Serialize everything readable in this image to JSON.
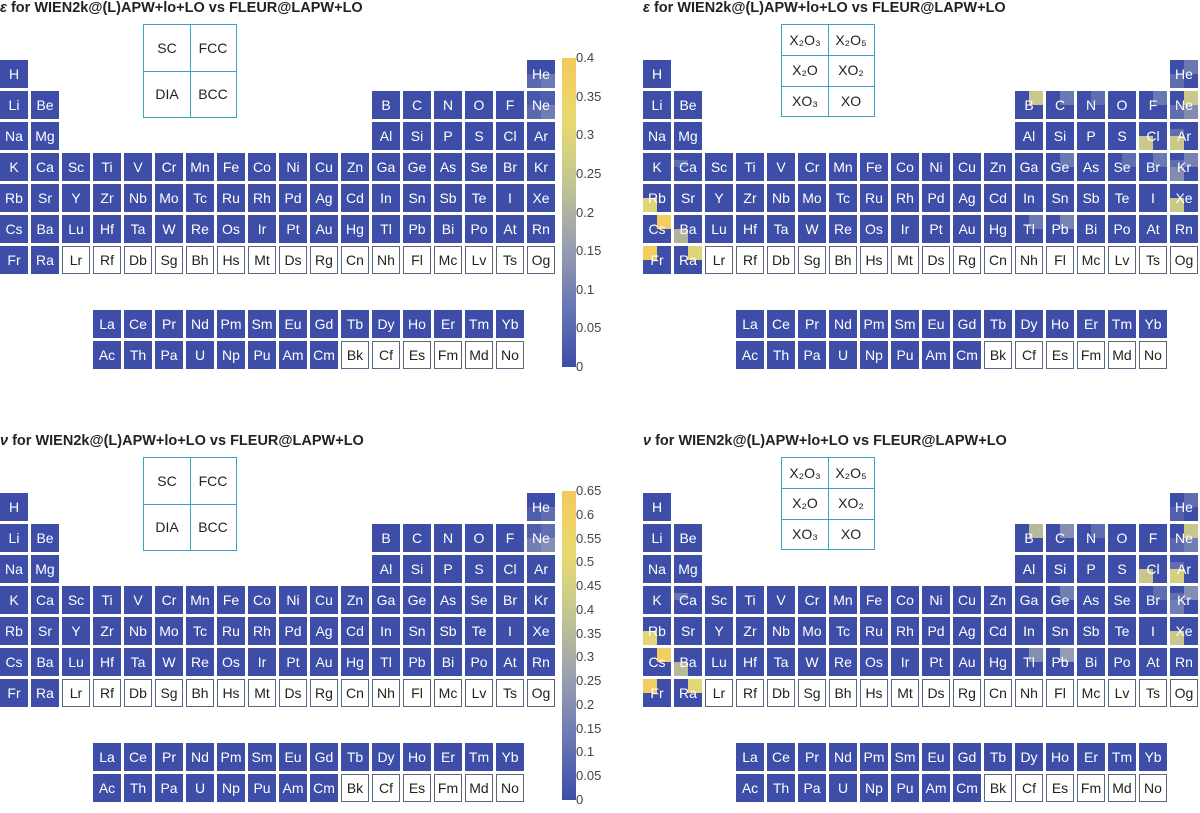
{
  "panels": [
    {
      "symbol": "ε",
      "title_rest": " for WIEN2k@(L)APW+lo+LO vs FLEUR@LAPW+LO",
      "legend_kind": "crystal",
      "legend": [
        [
          "SC",
          "FCC"
        ],
        [
          "DIA",
          "BCC"
        ]
      ],
      "colorbar": {
        "ticks": [
          "0",
          "0.05",
          "0.1",
          "0.15",
          "0.2",
          "0.25",
          "0.3",
          "0.35",
          "0.4"
        ],
        "min": 0,
        "max": 0.4
      }
    },
    {
      "symbol": "ε",
      "title_rest": " for WIEN2k@(L)APW+lo+LO vs FLEUR@LAPW+LO",
      "legend_kind": "oxide",
      "legend": [
        [
          "X₂O₃",
          "X₂O₅"
        ],
        [
          "X₂O",
          "XO₂"
        ],
        [
          "XO₃",
          "XO"
        ]
      ]
    },
    {
      "symbol": "ν",
      "title_rest": " for WIEN2k@(L)APW+lo+LO vs FLEUR@LAPW+LO",
      "legend_kind": "crystal",
      "legend": [
        [
          "SC",
          "FCC"
        ],
        [
          "DIA",
          "BCC"
        ]
      ],
      "colorbar": {
        "ticks": [
          "0",
          "0.05",
          "0.1",
          "0.15",
          "0.2",
          "0.25",
          "0.3",
          "0.35",
          "0.4",
          "0.45",
          "0.5",
          "0.55",
          "0.6",
          "0.65"
        ],
        "min": 0,
        "max": 0.65
      }
    },
    {
      "symbol": "ν",
      "title_rest": " for WIEN2k@(L)APW+lo+LO vs FLEUR@LAPW+LO",
      "legend_kind": "oxide",
      "legend": [
        [
          "X₂O₃",
          "X₂O₅"
        ],
        [
          "X₂O",
          "XO₂"
        ],
        [
          "XO₃",
          "XO"
        ]
      ]
    }
  ],
  "chart_data": {
    "type": "heatmap",
    "description_layout": "periodic table heatmap; each element colored by discrepancy metric",
    "colorscale": [
      "#3d4da8",
      "#6a78b4",
      "#9aa0b0",
      "#c4c690",
      "#e8da70",
      "#f5c95c"
    ],
    "periodic_table": {
      "rows": [
        [
          "H",
          "",
          "",
          "",
          "",
          "",
          "",
          "",
          "",
          "",
          "",
          "",
          "",
          "",
          "",
          "",
          "",
          "He"
        ],
        [
          "Li",
          "Be",
          "",
          "",
          "",
          "",
          "",
          "",
          "",
          "",
          "",
          "",
          "B",
          "C",
          "N",
          "O",
          "F",
          "Ne"
        ],
        [
          "Na",
          "Mg",
          "",
          "",
          "",
          "",
          "",
          "",
          "",
          "",
          "",
          "",
          "Al",
          "Si",
          "P",
          "S",
          "Cl",
          "Ar"
        ],
        [
          "K",
          "Ca",
          "Sc",
          "Ti",
          "V",
          "Cr",
          "Mn",
          "Fe",
          "Co",
          "Ni",
          "Cu",
          "Zn",
          "Ga",
          "Ge",
          "As",
          "Se",
          "Br",
          "Kr"
        ],
        [
          "Rb",
          "Sr",
          "Y",
          "Zr",
          "Nb",
          "Mo",
          "Tc",
          "Ru",
          "Rh",
          "Pd",
          "Ag",
          "Cd",
          "In",
          "Sn",
          "Sb",
          "Te",
          "I",
          "Xe"
        ],
        [
          "Cs",
          "Ba",
          "Lu",
          "Hf",
          "Ta",
          "W",
          "Re",
          "Os",
          "Ir",
          "Pt",
          "Au",
          "Hg",
          "Tl",
          "Pb",
          "Bi",
          "Po",
          "At",
          "Rn"
        ],
        [
          "Fr",
          "Ra",
          "Lr",
          "Rf",
          "Db",
          "Sg",
          "Bh",
          "Hs",
          "Mt",
          "Ds",
          "Rg",
          "Cn",
          "Nh",
          "Fl",
          "Mc",
          "Lv",
          "Ts",
          "Og"
        ]
      ],
      "lanthanides": [
        "La",
        "Ce",
        "Pr",
        "Nd",
        "Pm",
        "Sm",
        "Eu",
        "Gd",
        "Tb",
        "Dy",
        "Ho",
        "Er",
        "Tm",
        "Yb"
      ],
      "actinides": [
        "Ac",
        "Th",
        "Pa",
        "U",
        "Np",
        "Pu",
        "Am",
        "Cm",
        "Bk",
        "Cf",
        "Es",
        "Fm",
        "Md",
        "No"
      ],
      "not_computed": [
        "Lr",
        "Rf",
        "Db",
        "Sg",
        "Bh",
        "Hs",
        "Mt",
        "Ds",
        "Rg",
        "Cn",
        "Nh",
        "Fl",
        "Mc",
        "Lv",
        "Ts",
        "Og",
        "Bk",
        "Cf",
        "Es",
        "Fm",
        "Md",
        "No"
      ]
    },
    "panels": [
      {
        "metric": "ε",
        "comparison": "WIEN2k@(L)APW+lo+LO vs FLEUR@LAPW+LO",
        "legend_quadrants": [
          "SC",
          "FCC",
          "DIA",
          "BCC"
        ],
        "scale_max": 0.4,
        "quadrant_values": {
          "He": [
            0.0,
            0.0,
            0.05,
            0.08
          ],
          "Ne": [
            0.02,
            0.03,
            0.05,
            0.09
          ]
        }
      },
      {
        "metric": "ε",
        "comparison": "WIEN2k@(L)APW+lo+LO vs FLEUR@LAPW+LO",
        "legend_quadrants": [
          "X2O3",
          "X2O5",
          "X2O",
          "XO2",
          "XO3",
          "XO"
        ],
        "scale_max": 0.4,
        "sub_values": {
          "He": [
            0,
            0.08,
            0,
            0,
            0,
            0.06
          ],
          "B": [
            0,
            0.25,
            0,
            0,
            0,
            0
          ],
          "C": [
            0,
            0.08,
            0,
            0,
            0,
            0
          ],
          "N": [
            0,
            0.06,
            0,
            0,
            0,
            0
          ],
          "F": [
            0,
            0.08,
            0,
            0,
            0,
            0
          ],
          "Ne": [
            0,
            0.25,
            0,
            0.12,
            0,
            0.06
          ],
          "Cl": [
            0,
            0,
            0,
            0,
            0,
            0.25
          ],
          "Ar": [
            0,
            0,
            0.06,
            0,
            0,
            0.25
          ],
          "Ca": [
            0,
            0,
            0.06,
            0,
            0,
            0
          ],
          "Ge": [
            0,
            0.08,
            0,
            0,
            0,
            0
          ],
          "Se": [
            0,
            0.06,
            0,
            0,
            0,
            0
          ],
          "Br": [
            0,
            0.08,
            0,
            0,
            0,
            0
          ],
          "Kr": [
            0,
            0.1,
            0.06,
            0,
            0,
            0.12
          ],
          "Rb": [
            0,
            0,
            0,
            0,
            0.3,
            0
          ],
          "Xe": [
            0,
            0,
            0,
            0,
            0,
            0.25
          ],
          "Cs": [
            0,
            0.38,
            0,
            0,
            0,
            0
          ],
          "Ba": [
            0,
            0,
            0,
            0,
            0,
            0.2
          ],
          "Tl": [
            0,
            0.08,
            0,
            0,
            0,
            0
          ],
          "Pb": [
            0,
            0.1,
            0,
            0,
            0,
            0
          ],
          "Fr": [
            0.38,
            0,
            0,
            0,
            0,
            0
          ],
          "Ra": [
            0,
            0.3,
            0,
            0,
            0,
            0
          ]
        }
      },
      {
        "metric": "ν",
        "comparison": "WIEN2k@(L)APW+lo+LO vs FLEUR@LAPW+LO",
        "legend_quadrants": [
          "SC",
          "FCC",
          "DIA",
          "BCC"
        ],
        "scale_max": 0.65,
        "quadrant_values": {
          "He": [
            0,
            0,
            0.05,
            0.1
          ],
          "Ne": [
            0.05,
            0.1,
            0.15,
            0.2
          ]
        }
      },
      {
        "metric": "ν",
        "comparison": "WIEN2k@(L)APW+lo+LO vs FLEUR@LAPW+LO",
        "legend_quadrants": [
          "X2O3",
          "X2O5",
          "X2O",
          "XO2",
          "XO3",
          "XO"
        ],
        "scale_max": 0.65,
        "sub_values": {
          "He": [
            0,
            0.1,
            0,
            0,
            0,
            0.06
          ],
          "B": [
            0,
            0.35,
            0,
            0,
            0,
            0
          ],
          "C": [
            0,
            0.2,
            0,
            0,
            0,
            0
          ],
          "N": [
            0,
            0.1,
            0,
            0,
            0,
            0
          ],
          "Ne": [
            0,
            0.4,
            0,
            0.15,
            0,
            0.08
          ],
          "Cl": [
            0,
            0,
            0,
            0,
            0,
            0.4
          ],
          "Ar": [
            0,
            0,
            0.1,
            0,
            0,
            0.45
          ],
          "Ca": [
            0,
            0,
            0.12,
            0,
            0,
            0
          ],
          "Ge": [
            0,
            0.15,
            0,
            0,
            0,
            0
          ],
          "Br": [
            0,
            0.1,
            0,
            0,
            0,
            0
          ],
          "Kr": [
            0,
            0.2,
            0.1,
            0,
            0,
            0.15
          ],
          "Rb": [
            0,
            0,
            0,
            0,
            0.5,
            0
          ],
          "Xe": [
            0,
            0,
            0,
            0,
            0,
            0.4
          ],
          "Cs": [
            0,
            0.6,
            0,
            0,
            0,
            0
          ],
          "Ba": [
            0,
            0,
            0,
            0,
            0,
            0.35
          ],
          "Tl": [
            0,
            0.2,
            0,
            0,
            0,
            0
          ],
          "Pb": [
            0,
            0.25,
            0,
            0,
            0,
            0
          ],
          "Fr": [
            0.62,
            0,
            0,
            0,
            0,
            0
          ],
          "Ra": [
            0,
            0.5,
            0,
            0,
            0,
            0
          ]
        }
      }
    ]
  }
}
